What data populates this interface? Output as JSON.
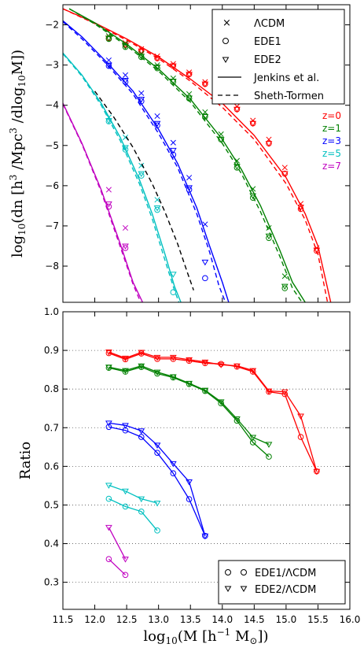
{
  "chart_data": [
    {
      "type": "line",
      "ylabel": "log10(dn [h^3 /Mpc^3 /dlog10M])",
      "xlim": [
        11.5,
        16.0
      ],
      "ylim": [
        -8.9,
        -1.5
      ],
      "y_ticks": [
        "−2",
        "−3",
        "−4",
        "−5",
        "−6",
        "−7",
        "−8"
      ],
      "legend": {
        "position": "top-right",
        "entries": [
          {
            "symbol": "×",
            "label": "ΛCDM"
          },
          {
            "symbol": "○",
            "label": "EDE1"
          },
          {
            "symbol": "▽",
            "label": "EDE2"
          },
          {
            "line": "solid",
            "label": "Jenkins et al."
          },
          {
            "line": "dashed",
            "label": "Sheth-Tormen"
          }
        ]
      },
      "redshift_labels": [
        {
          "label": "z=0",
          "color": "#ff0000"
        },
        {
          "label": "z=1",
          "color": "#008000"
        },
        {
          "label": "z=3",
          "color": "#0000ff"
        },
        {
          "label": "z=5",
          "color": "#00c0c0"
        },
        {
          "label": "z=7",
          "color": "#c000c0"
        }
      ],
      "series": [
        {
          "color": "#ff0000",
          "jenkins": {
            "x": [
              11.5,
              12.0,
              12.5,
              13.0,
              13.5,
              14.0,
              14.5,
              15.0,
              15.3,
              15.5,
              15.7
            ],
            "y": [
              -1.6,
              -1.95,
              -2.35,
              -2.8,
              -3.35,
              -3.95,
              -4.75,
              -5.8,
              -6.7,
              -7.5,
              -8.9
            ]
          },
          "sheth": {
            "x": [
              11.5,
              12.0,
              12.5,
              13.0,
              13.5,
              14.0,
              14.5,
              15.0,
              15.3,
              15.5,
              15.65
            ],
            "y": [
              -1.6,
              -1.97,
              -2.38,
              -2.84,
              -3.4,
              -4.05,
              -4.85,
              -5.95,
              -6.85,
              -7.7,
              -8.9
            ]
          },
          "lcdm": {
            "x": [
              12.22,
              12.48,
              12.73,
              12.98,
              13.23,
              13.48,
              13.73,
              13.98,
              14.23,
              14.48,
              14.73,
              14.98,
              15.23,
              15.48
            ],
            "y": [
              -2.28,
              -2.45,
              -2.6,
              -2.78,
              -2.97,
              -3.18,
              -3.42,
              -3.72,
              -4.03,
              -4.38,
              -4.85,
              -5.55,
              -6.45,
              -7.55
            ]
          },
          "ede1": {
            "x": [
              12.22,
              12.48,
              12.73,
              12.98,
              13.23,
              13.48,
              13.73,
              13.98,
              14.23,
              14.48,
              14.73,
              14.98,
              15.23,
              15.48
            ],
            "y": [
              -2.33,
              -2.5,
              -2.65,
              -2.83,
              -3.02,
              -3.23,
              -3.47,
              -3.78,
              -4.1,
              -4.45,
              -4.95,
              -5.7,
              -6.58,
              -7.62
            ]
          },
          "ede2": {
            "x": [
              12.22,
              12.48,
              12.73,
              12.98,
              13.23,
              13.48,
              13.73,
              13.98,
              14.23,
              14.48,
              14.73,
              14.98,
              15.23,
              15.48
            ],
            "y": [
              -2.33,
              -2.5,
              -2.65,
              -2.83,
              -3.02,
              -3.23,
              -3.47,
              -3.78,
              -4.1,
              -4.45,
              -4.95,
              -5.7,
              -6.53,
              -7.6
            ]
          }
        },
        {
          "color": "#008000",
          "jenkins": {
            "x": [
              11.6,
              12.0,
              12.5,
              13.0,
              13.5,
              14.0,
              14.3,
              14.6,
              14.9,
              15.1,
              15.3
            ],
            "y": [
              -1.6,
              -1.95,
              -2.48,
              -3.1,
              -3.85,
              -4.85,
              -5.6,
              -6.5,
              -7.6,
              -8.4,
              -8.9
            ]
          },
          "sheth": {
            "x": [
              11.6,
              12.0,
              12.5,
              13.0,
              13.5,
              14.0,
              14.3,
              14.6,
              14.9,
              15.1,
              15.25
            ],
            "y": [
              -1.6,
              -1.98,
              -2.52,
              -3.15,
              -3.92,
              -4.95,
              -5.7,
              -6.65,
              -7.75,
              -8.55,
              -8.9
            ]
          },
          "lcdm": {
            "x": [
              12.22,
              12.48,
              12.73,
              12.98,
              13.23,
              13.48,
              13.73,
              13.98,
              14.23,
              14.48,
              14.73,
              14.98
            ],
            "y": [
              -2.28,
              -2.47,
              -2.72,
              -3.0,
              -3.33,
              -3.72,
              -4.17,
              -4.72,
              -5.38,
              -6.08,
              -7.05,
              -8.25
            ]
          },
          "ede1": {
            "x": [
              12.22,
              12.48,
              12.73,
              12.98,
              13.23,
              13.48,
              13.73,
              13.98,
              14.23,
              14.48,
              14.73,
              14.98
            ],
            "y": [
              -2.35,
              -2.55,
              -2.8,
              -3.08,
              -3.42,
              -3.83,
              -4.28,
              -4.85,
              -5.55,
              -6.3,
              -7.3,
              -8.55
            ]
          },
          "ede2": {
            "x": [
              12.22,
              12.48,
              12.73,
              12.98,
              13.23,
              13.48,
              13.73,
              13.98,
              14.23,
              14.48,
              14.73,
              14.98
            ],
            "y": [
              -2.33,
              -2.53,
              -2.78,
              -3.05,
              -3.4,
              -3.82,
              -4.28,
              -4.85,
              -5.52,
              -6.25,
              -7.25,
              -8.5
            ]
          }
        },
        {
          "color": "#0000ff",
          "jenkins": {
            "x": [
              11.5,
              11.8,
              12.2,
              12.6,
              13.0,
              13.3,
              13.6,
              13.8,
              14.0,
              14.1
            ],
            "y": [
              -1.9,
              -2.3,
              -2.95,
              -3.65,
              -4.6,
              -5.45,
              -6.55,
              -7.5,
              -8.4,
              -8.9
            ]
          },
          "sheth": {
            "x": [
              11.5,
              11.8,
              12.2,
              12.6,
              13.0,
              13.3,
              13.6,
              13.8,
              13.95,
              14.05
            ],
            "y": [
              -1.92,
              -2.35,
              -3.0,
              -3.72,
              -4.7,
              -5.55,
              -6.7,
              -7.65,
              -8.5,
              -8.9
            ]
          },
          "lcdm": {
            "x": [
              12.22,
              12.48,
              12.73,
              12.98,
              13.23,
              13.48,
              13.73
            ],
            "y": [
              -2.88,
              -3.25,
              -3.7,
              -4.27,
              -4.93,
              -5.8,
              -6.96
            ]
          },
          "ede1": {
            "x": [
              12.22,
              12.48,
              12.73,
              12.98,
              13.23,
              13.48,
              13.73
            ],
            "y": [
              -3.02,
              -3.42,
              -3.9,
              -4.5,
              -5.23,
              -6.1,
              -8.3
            ]
          },
          "ede2": {
            "x": [
              12.22,
              12.48,
              12.73,
              12.98,
              13.23,
              13.48,
              13.73
            ],
            "y": [
              -3.0,
              -3.38,
              -3.85,
              -4.45,
              -5.12,
              -6.05,
              -7.9
            ]
          }
        },
        {
          "color": "#00c0c0",
          "jenkins": {
            "x": [
              11.5,
              11.8,
              12.1,
              12.4,
              12.7,
              12.9,
              13.1,
              13.25,
              13.35
            ],
            "y": [
              -2.7,
              -3.25,
              -3.95,
              -4.8,
              -5.85,
              -6.7,
              -7.7,
              -8.5,
              -8.9
            ]
          },
          "sheth": {
            "x": [
              11.5,
              11.8,
              12.1,
              12.4,
              12.7,
              12.9,
              13.1,
              13.25,
              13.32
            ],
            "y": [
              -2.72,
              -3.28,
              -4.0,
              -4.88,
              -5.95,
              -6.82,
              -7.85,
              -8.6,
              -8.9
            ]
          },
          "lcdm": {
            "x": [
              12.22,
              12.48,
              12.73,
              12.98
            ],
            "y": [
              -4.3,
              -4.8,
              -5.5,
              -6.35
            ]
          },
          "ede1": {
            "x": [
              12.22,
              12.48,
              12.73,
              12.98,
              13.23
            ],
            "y": [
              -4.4,
              -5.1,
              -5.75,
              -6.6,
              -8.65
            ]
          },
          "ede2": {
            "x": [
              12.22,
              12.48,
              12.73,
              12.98,
              13.23
            ],
            "y": [
              -4.38,
              -5.05,
              -5.7,
              -6.55,
              -8.2
            ]
          }
        },
        {
          "color": "#c000c0",
          "jenkins": {
            "x": [
              11.5,
              11.8,
              12.1,
              12.4,
              12.6,
              12.75
            ],
            "y": [
              -3.95,
              -4.95,
              -6.1,
              -7.45,
              -8.4,
              -8.9
            ]
          },
          "sheth": {
            "x": [
              11.5,
              11.8,
              12.1,
              12.4,
              12.6,
              12.72
            ],
            "y": [
              -3.97,
              -4.97,
              -6.15,
              -7.52,
              -8.45,
              -8.9
            ]
          },
          "lcdm": {
            "x": [
              12.22,
              12.48
            ],
            "y": [
              -6.1,
              -7.05
            ]
          },
          "ede1": {
            "x": [
              12.22,
              12.48
            ],
            "y": [
              -6.52,
              -7.55
            ]
          },
          "ede2": {
            "x": [
              12.22,
              12.48
            ],
            "y": [
              -6.45,
              -7.5
            ]
          }
        }
      ],
      "sheth_tormen_black": {
        "x": [
          12.0,
          12.3,
          12.6,
          12.9,
          13.1,
          13.3,
          13.45,
          13.55
        ],
        "y": [
          -3.65,
          -4.3,
          -5.05,
          -5.95,
          -6.65,
          -7.45,
          -8.15,
          -8.6
        ],
        "color": "#000000"
      }
    },
    {
      "type": "line",
      "xlabel": "log10(M [h^-1 M⊙])",
      "ylabel": "Ratio",
      "xlim": [
        11.5,
        16.0
      ],
      "ylim": [
        0.23,
        1.0
      ],
      "x_ticks": [
        "11.5",
        "12.0",
        "12.5",
        "13.0",
        "13.5",
        "14.0",
        "14.5",
        "15.0",
        "15.5",
        "16.0"
      ],
      "y_ticks": [
        "0.3",
        "0.4",
        "0.5",
        "0.6",
        "0.7",
        "0.8",
        "0.9",
        "1.0"
      ],
      "grid": "horizontal dotted",
      "legend": {
        "position": "bottom-right",
        "entries": [
          {
            "symbol": "○",
            "label": "EDE1/ΛCDM"
          },
          {
            "symbol": "▽",
            "label": "EDE2/ΛCDM"
          }
        ]
      },
      "series": [
        {
          "color": "#ff0000",
          "x": [
            12.22,
            12.48,
            12.73,
            12.98,
            13.23,
            13.48,
            13.73,
            13.98,
            14.23,
            14.48,
            14.73,
            14.98,
            15.23,
            15.48
          ],
          "ede1": [
            0.893,
            0.877,
            0.892,
            0.878,
            0.878,
            0.873,
            0.867,
            0.865,
            0.858,
            0.845,
            0.793,
            0.787,
            0.676,
            0.587
          ],
          "ede2": [
            0.896,
            0.88,
            0.895,
            0.882,
            0.882,
            0.876,
            0.87,
            0.863,
            0.86,
            0.848,
            0.795,
            0.793,
            0.73,
            0.587
          ]
        },
        {
          "color": "#008000",
          "x": [
            12.22,
            12.48,
            12.73,
            12.98,
            13.23,
            13.48,
            13.73,
            13.98,
            14.23,
            14.48,
            14.73
          ],
          "ede1": [
            0.855,
            0.845,
            0.857,
            0.84,
            0.83,
            0.813,
            0.795,
            0.763,
            0.718,
            0.662,
            0.625
          ],
          "ede2": [
            0.857,
            0.848,
            0.86,
            0.844,
            0.832,
            0.815,
            0.797,
            0.767,
            0.723,
            0.675,
            0.657
          ]
        },
        {
          "color": "#0000ff",
          "x": [
            12.22,
            12.48,
            12.73,
            12.98,
            13.23,
            13.48,
            13.73
          ],
          "ede1": [
            0.702,
            0.693,
            0.676,
            0.635,
            0.582,
            0.515,
            0.42
          ],
          "ede2": [
            0.712,
            0.706,
            0.692,
            0.655,
            0.607,
            0.56,
            0.42
          ]
        },
        {
          "color": "#00c0c0",
          "x": [
            12.22,
            12.48,
            12.73,
            12.98
          ],
          "ede1": [
            0.516,
            0.496,
            0.483,
            0.434
          ],
          "ede2": [
            0.551,
            0.536,
            0.516,
            0.505
          ]
        },
        {
          "color": "#c000c0",
          "x": [
            12.22,
            12.48
          ],
          "ede1": [
            0.36,
            0.319
          ],
          "ede2": [
            0.442,
            0.36
          ]
        }
      ]
    }
  ]
}
